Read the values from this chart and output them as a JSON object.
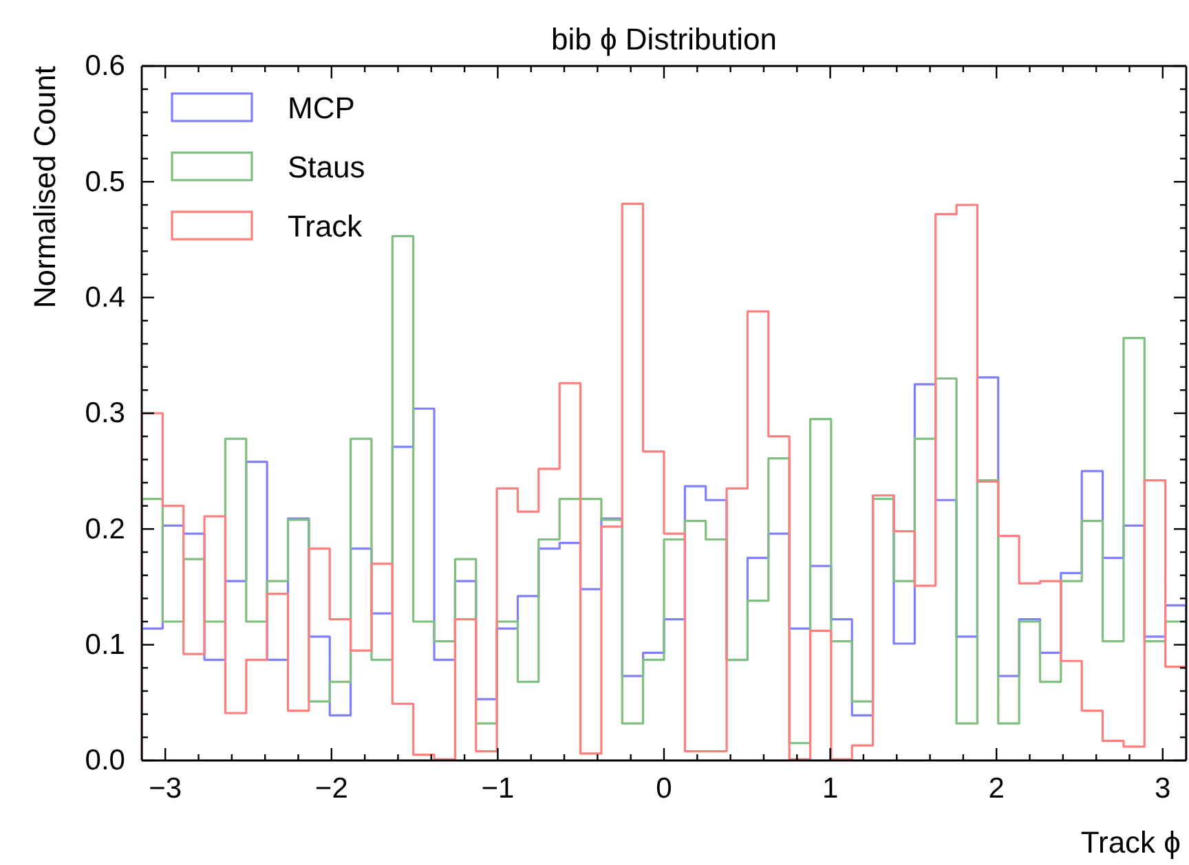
{
  "chart_data": {
    "type": "histogram",
    "title": "bib ϕ Distribution",
    "xlabel": "Track ϕ",
    "ylabel": "Normalised Count",
    "legend": "top left",
    "bins": [
      -3.1416,
      -3.0159,
      -2.8903,
      -2.7646,
      -2.6389,
      -2.5133,
      -2.3876,
      -2.2619,
      -2.1363,
      -2.0106,
      -1.885,
      -1.7593,
      -1.6336,
      -1.508,
      -1.3823,
      -1.2566,
      -1.131,
      -1.0053,
      -0.8796,
      -0.754,
      -0.6283,
      -0.5027,
      -0.377,
      -0.2513,
      -0.1257,
      0,
      0.1257,
      0.2513,
      0.377,
      0.5027,
      0.6283,
      0.754,
      0.8796,
      1.0053,
      1.131,
      1.2566,
      1.3823,
      1.508,
      1.6336,
      1.7593,
      1.885,
      2.0106,
      2.1363,
      2.2619,
      2.3876,
      2.5133,
      2.6389,
      2.7646,
      2.8903,
      3.0159,
      3.1416
    ],
    "series": [
      {
        "name": "MCP",
        "color": "#7f7fff",
        "values": [
          0.114,
          0.203,
          0.196,
          0.087,
          0.155,
          0.258,
          0.087,
          0.209,
          0.107,
          0.039,
          0.183,
          0.127,
          0.271,
          0.304,
          0.087,
          0.155,
          0.053,
          0.114,
          0.142,
          0.183,
          0.188,
          0.148,
          0.209,
          0.073,
          0.093,
          0.122,
          0.237,
          0.225,
          0.087,
          0.175,
          0.196,
          0.114,
          0.168,
          0.122,
          0.039,
          0.229,
          0.101,
          0.325,
          0.225,
          0.107,
          0.331,
          0.073,
          0.122,
          0.093,
          0.162,
          0.25,
          0.175,
          0.203,
          0.107,
          0.134
        ]
      },
      {
        "name": "Staus",
        "color": "#7fbf7f",
        "values": [
          0.226,
          0.12,
          0.174,
          0.12,
          0.278,
          0.12,
          0.155,
          0.208,
          0.051,
          0.068,
          0.278,
          0.087,
          0.453,
          0.12,
          0.103,
          0.174,
          0.032,
          0.12,
          0.068,
          0.191,
          0.226,
          0.226,
          0.208,
          0.032,
          0.087,
          0.191,
          0.207,
          0.191,
          0.087,
          0.138,
          0.261,
          0.015,
          0.295,
          0.103,
          0.051,
          0.226,
          0.155,
          0.278,
          0.33,
          0.032,
          0.242,
          0.032,
          0.12,
          0.068,
          0.155,
          0.207,
          0.103,
          0.365,
          0.103,
          0.12
        ]
      },
      {
        "name": "Track",
        "color": "#ff7f7f",
        "values": [
          0.3,
          0.22,
          0.092,
          0.211,
          0.041,
          0.087,
          0.144,
          0.043,
          0.183,
          0.122,
          0.095,
          0.17,
          0.049,
          0.005,
          0.001,
          0.122,
          0.008,
          0.235,
          0.215,
          0.252,
          0.326,
          0.006,
          0.202,
          0.481,
          0.267,
          0.196,
          0.008,
          0.008,
          0.235,
          0.388,
          0.28,
          0.001,
          0.112,
          0.001,
          0.013,
          0.229,
          0.198,
          0.151,
          0.472,
          0.48,
          0.241,
          0.194,
          0.153,
          0.155,
          0.086,
          0.043,
          0.017,
          0.012,
          0.242,
          0.081
        ]
      }
    ],
    "xlim": [
      -3.1416,
      3.1416
    ],
    "xticks": [
      {
        "value": -3,
        "label": "−3"
      },
      {
        "value": -2.8,
        "label": null
      },
      {
        "value": -2.6,
        "label": null
      },
      {
        "value": -2.4,
        "label": null
      },
      {
        "value": -2.2,
        "label": null
      },
      {
        "value": -2,
        "label": "−2"
      },
      {
        "value": -1.8,
        "label": null
      },
      {
        "value": -1.6,
        "label": null
      },
      {
        "value": -1.4,
        "label": null
      },
      {
        "value": -1.2,
        "label": null
      },
      {
        "value": -1,
        "label": "−1"
      },
      {
        "value": -0.8,
        "label": null
      },
      {
        "value": -0.6,
        "label": null
      },
      {
        "value": -0.4,
        "label": null
      },
      {
        "value": -0.2,
        "label": null
      },
      0,
      {
        "value": 0.2,
        "label": null
      },
      {
        "value": 0.4,
        "label": null
      },
      {
        "value": 0.6,
        "label": null
      },
      {
        "value": 0.8,
        "label": null
      },
      1,
      {
        "value": 1.2,
        "label": null
      },
      {
        "value": 1.4,
        "label": null
      },
      {
        "value": 1.6,
        "label": null
      },
      {
        "value": 1.8,
        "label": null
      },
      2,
      {
        "value": 2.2,
        "label": null
      },
      {
        "value": 2.4,
        "label": null
      },
      {
        "value": 2.6,
        "label": null
      },
      {
        "value": 2.8,
        "label": null
      },
      3
    ],
    "ylim": [
      0,
      0.6
    ],
    "yticks": [
      {
        "value": 0,
        "label": "0.0"
      },
      {
        "value": 0.02,
        "label": null
      },
      {
        "value": 0.04,
        "label": null
      },
      {
        "value": 0.06,
        "label": null
      },
      {
        "value": 0.08,
        "label": null
      },
      0.1,
      {
        "value": 0.12,
        "label": null
      },
      {
        "value": 0.14,
        "label": null
      },
      {
        "value": 0.16,
        "label": null
      },
      {
        "value": 0.18,
        "label": null
      },
      0.2,
      {
        "value": 0.22,
        "label": null
      },
      {
        "value": 0.24,
        "label": null
      },
      {
        "value": 0.26,
        "label": null
      },
      {
        "value": 0.28,
        "label": null
      },
      0.3,
      {
        "value": 0.32,
        "label": null
      },
      {
        "value": 0.34,
        "label": null
      },
      {
        "value": 0.36,
        "label": null
      },
      {
        "value": 0.38,
        "label": null
      },
      0.4,
      {
        "value": 0.42,
        "label": null
      },
      {
        "value": 0.44,
        "label": null
      },
      {
        "value": 0.46,
        "label": null
      },
      {
        "value": 0.48,
        "label": null
      },
      0.5,
      {
        "value": 0.52,
        "label": null
      },
      {
        "value": 0.54,
        "label": null
      },
      {
        "value": 0.56,
        "label": null
      },
      {
        "value": 0.58,
        "label": null
      },
      0.6
    ]
  }
}
